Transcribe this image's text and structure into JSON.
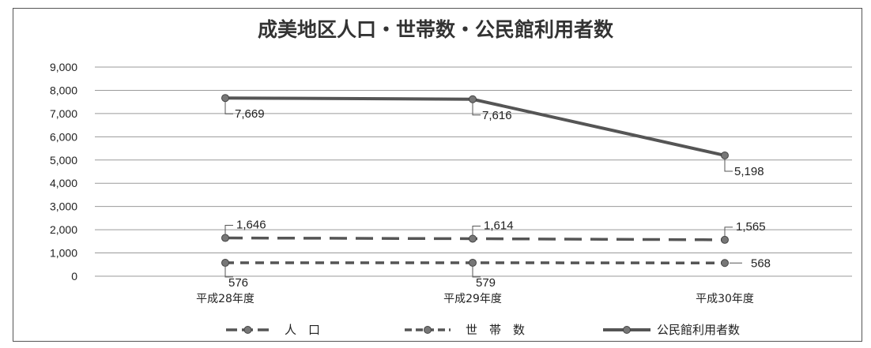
{
  "chart_data": {
    "type": "line",
    "title": "成美地区人口・世帯数・公民館利用者数",
    "categories": [
      "平成28年度",
      "平成29年度",
      "平成30年度"
    ],
    "ylim": [
      0,
      9000
    ],
    "yticks": [
      "0",
      "1,000",
      "2,000",
      "3,000",
      "4,000",
      "5,000",
      "6,000",
      "7,000",
      "8,000",
      "9,000"
    ],
    "grid": true,
    "legend_position": "bottom",
    "series": [
      {
        "name": "人　口",
        "values": [
          1646,
          1614,
          1565
        ],
        "labels": [
          "1,646",
          "1,614",
          "1,565"
        ],
        "style": "long-dash",
        "color": "#555555"
      },
      {
        "name": "世　帯　数",
        "values": [
          576,
          579,
          568
        ],
        "labels": [
          "576",
          "579",
          "568"
        ],
        "style": "short-dash",
        "color": "#555555"
      },
      {
        "name": "公民館利用者数",
        "values": [
          7669,
          7616,
          5198
        ],
        "labels": [
          "7,669",
          "7,616",
          "5,198"
        ],
        "style": "solid",
        "color": "#555555"
      }
    ]
  }
}
